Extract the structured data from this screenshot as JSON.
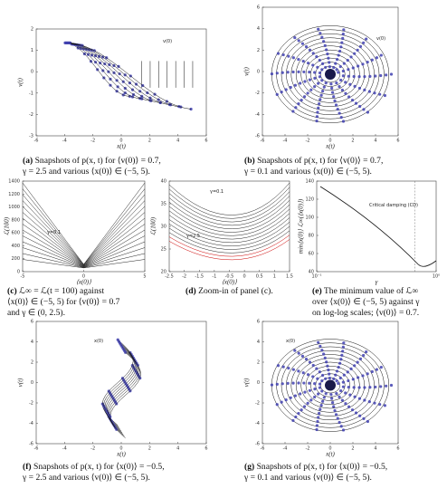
{
  "panels": [
    {
      "xlabel": "x(t)",
      "ylabel": "v(t)",
      "xticks": [
        -6,
        -4,
        -2,
        0,
        2,
        4,
        6
      ],
      "yticks": [
        -3,
        -2,
        -1,
        0,
        1,
        2
      ],
      "annotations": [
        "v(0)"
      ],
      "caption": {
        "label": "(a)",
        "lines": [
          "Snapshots of p(x, t) for ⟨v(0)⟩ = 0.7,",
          "γ = 2.5 and various ⟨x(0)⟩ ∈ (−5, 5)."
        ]
      }
    },
    {
      "xlabel": "x(t)",
      "ylabel": "v(t)",
      "xticks": [
        -6,
        -4,
        -2,
        0,
        2,
        4,
        6
      ],
      "yticks": [
        -6,
        -4,
        -2,
        0,
        2,
        4,
        6
      ],
      "annotations": [
        "v(0)"
      ],
      "caption": {
        "label": "(b)",
        "lines": [
          "Snapshots of p(x, t) for ⟨v(0)⟩ = 0.7,",
          "γ = 0.1 and various ⟨x(0)⟩ ∈ (−5, 5)."
        ]
      }
    },
    {
      "xlabel": "⟨x(0)⟩",
      "ylabel": "ℒ(100)",
      "xticks": [
        -5,
        0,
        5
      ],
      "yticks": [
        0,
        200,
        400,
        600,
        800,
        1000,
        1200,
        1400
      ],
      "annotations": [
        "γ=0.1"
      ],
      "caption": {
        "label": "(c)",
        "lines": [
          "ℒ∞ = ℒ(t = 100) against",
          "⟨x(0)⟩ ∈ (−5, 5) for ⟨v(0)⟩ = 0.7",
          "and γ ∈ (0, 2.5)."
        ]
      }
    },
    {
      "xlabel": "⟨x(0)⟩",
      "ylabel": "ℒ(100)",
      "xticks": [
        -2.5,
        -2,
        -1.5,
        -1,
        -0.5,
        0,
        0.5,
        1,
        1.5
      ],
      "yticks": [
        20,
        25,
        30,
        35,
        40
      ],
      "annotations": [
        "γ=0.1",
        "γ=2.5"
      ],
      "caption": {
        "label": "(d)",
        "lines": [
          "Zoom-in of panel (c)."
        ]
      }
    },
    {
      "xlabel": "γ",
      "ylabel": "min⟨x(0)⟩ ℒ∞(⟨x(0)⟩)",
      "xticks": [
        {
          "value": 0.1,
          "label": "10⁻¹"
        },
        {
          "value": 1,
          "label": "10⁰"
        }
      ],
      "yticks": [
        40,
        60,
        80,
        100,
        120,
        140
      ],
      "annotations": [
        "Critical damping (CD)"
      ],
      "caption": {
        "label": "(e)",
        "lines": [
          "The minimum value of ℒ∞",
          "over ⟨x(0)⟩ ∈ (−5, 5) against γ",
          "on log-log scales; ⟨v(0)⟩ = 0.7."
        ]
      }
    },
    {
      "xlabel": "x(t)",
      "ylabel": "v(t)",
      "xticks": [
        -6,
        -4,
        -2,
        0,
        2,
        4,
        6
      ],
      "yticks": [
        -6,
        -4,
        -2,
        0,
        2,
        4,
        6
      ],
      "annotations": [
        "x(0)"
      ],
      "caption": {
        "label": "(f)",
        "lines": [
          "Snapshots of p(x, t) for ⟨x(0)⟩ = −0.5,",
          "γ = 2.5 and various ⟨v(0)⟩ ∈ (−5, 5)."
        ]
      }
    },
    {
      "xlabel": "x(t)",
      "ylabel": "v(t)",
      "xticks": [
        -6,
        -4,
        -2,
        0,
        2,
        4,
        6
      ],
      "yticks": [
        -6,
        -4,
        -2,
        0,
        2,
        4,
        6
      ],
      "annotations": [
        "x(0)"
      ],
      "caption": {
        "label": "(g)",
        "lines": [
          "Snapshots of p(x, t) for ⟨x(0)⟩ = −0.5,",
          "γ = 0.1 and various ⟨v(0)⟩ ∈ (−5, 5)."
        ]
      }
    }
  ]
}
